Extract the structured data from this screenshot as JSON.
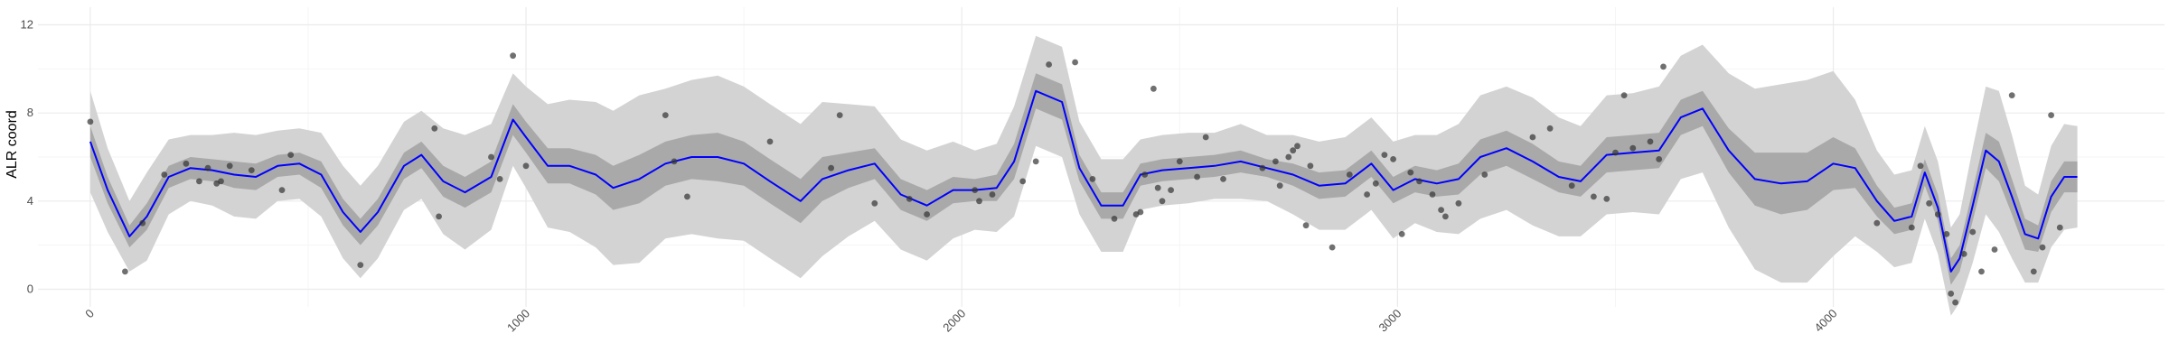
{
  "chart_data": {
    "type": "line",
    "title": "",
    "xlabel": "",
    "ylabel": "ALR coord",
    "xlim": [
      -120,
      4760
    ],
    "ylim": [
      -0.8,
      12.8
    ],
    "x_ticks": [
      0,
      1000,
      2000,
      3000,
      4000
    ],
    "x_tick_labels": [
      "0",
      "1000",
      "2000",
      "3000",
      "4000"
    ],
    "y_ticks": [
      0,
      4,
      8,
      12
    ],
    "y_tick_labels": [
      "0",
      "4",
      "8",
      "12"
    ],
    "grid": true,
    "legend": "none",
    "colors": {
      "mean_line": "#0000ff",
      "inner_band": "#a9a9a9",
      "outer_band": "#d3d3d3",
      "points": "#333333",
      "grid_major": "#ebebeb",
      "grid_minor": "#f5f5f5"
    },
    "series": [
      {
        "kind": "mean_line",
        "x": [
          0,
          40,
          90,
          130,
          180,
          230,
          280,
          330,
          380,
          430,
          480,
          530,
          580,
          620,
          660,
          720,
          760,
          810,
          860,
          920,
          970,
          1000,
          1050,
          1100,
          1160,
          1200,
          1260,
          1320,
          1380,
          1440,
          1500,
          1560,
          1630,
          1680,
          1740,
          1800,
          1860,
          1920,
          1980,
          2030,
          2080,
          2120,
          2170,
          2230,
          2270,
          2320,
          2370,
          2410,
          2460,
          2520,
          2580,
          2640,
          2700,
          2760,
          2820,
          2880,
          2940,
          2990,
          3040,
          3090,
          3140,
          3190,
          3250,
          3310,
          3370,
          3420,
          3480,
          3540,
          3600,
          3650,
          3700,
          3760,
          3820,
          3880,
          3940,
          4000,
          4050,
          4100,
          4140,
          4180,
          4210,
          4240,
          4270,
          4290,
          4320,
          4350,
          4380,
          4410,
          4440,
          4470,
          4500,
          4530,
          4560
        ],
        "y": [
          6.7,
          4.5,
          2.4,
          3.3,
          5.1,
          5.5,
          5.4,
          5.2,
          5.1,
          5.6,
          5.7,
          5.2,
          3.5,
          2.6,
          3.5,
          5.6,
          6.1,
          4.9,
          4.4,
          5.1,
          7.7,
          6.9,
          5.6,
          5.6,
          5.2,
          4.6,
          5.0,
          5.7,
          6.0,
          6.0,
          5.7,
          4.9,
          4.0,
          5.0,
          5.4,
          5.7,
          4.3,
          3.8,
          4.5,
          4.5,
          4.6,
          5.8,
          9.0,
          8.5,
          5.5,
          3.8,
          3.8,
          5.2,
          5.4,
          5.5,
          5.6,
          5.8,
          5.5,
          5.2,
          4.7,
          4.8,
          5.7,
          4.5,
          5.0,
          4.8,
          5.0,
          6.0,
          6.4,
          5.8,
          5.1,
          4.9,
          6.1,
          6.2,
          6.3,
          7.8,
          8.2,
          6.3,
          5.0,
          4.8,
          4.9,
          5.7,
          5.5,
          4.0,
          3.1,
          3.3,
          5.3,
          3.7,
          0.8,
          1.4,
          3.8,
          6.3,
          5.8,
          4.2,
          2.5,
          2.3,
          4.2,
          5.1,
          5.1
        ],
        "inner_lower": [
          6.0,
          3.9,
          1.9,
          2.7,
          4.6,
          5.0,
          4.9,
          4.6,
          4.5,
          5.1,
          5.2,
          4.6,
          2.9,
          2.0,
          2.9,
          5.0,
          5.5,
          4.2,
          3.7,
          4.4,
          7.0,
          6.2,
          4.8,
          4.8,
          4.3,
          3.6,
          3.9,
          4.7,
          5.0,
          4.9,
          4.7,
          3.9,
          3.0,
          4.0,
          4.6,
          5.0,
          3.6,
          3.1,
          3.9,
          4.0,
          4.0,
          5.0,
          8.2,
          7.7,
          4.9,
          3.2,
          3.2,
          4.7,
          4.9,
          5.0,
          5.1,
          5.3,
          5.1,
          4.7,
          4.1,
          4.2,
          5.1,
          3.9,
          4.4,
          4.2,
          4.3,
          5.2,
          5.6,
          5.0,
          4.4,
          4.2,
          5.3,
          5.4,
          5.5,
          7.0,
          7.4,
          5.3,
          3.8,
          3.4,
          3.6,
          4.5,
          4.6,
          3.3,
          2.5,
          2.7,
          4.7,
          3.1,
          0.2,
          0.8,
          3.1,
          5.5,
          4.9,
          3.4,
          1.8,
          1.7,
          3.5,
          4.4,
          4.4
        ],
        "inner_upper": [
          7.4,
          5.1,
          2.9,
          3.9,
          5.6,
          6.0,
          5.9,
          5.8,
          5.7,
          6.1,
          6.2,
          5.8,
          4.1,
          3.2,
          4.1,
          6.2,
          6.7,
          5.6,
          5.1,
          5.8,
          8.4,
          7.6,
          6.4,
          6.4,
          6.1,
          5.6,
          6.1,
          6.7,
          7.0,
          7.1,
          6.7,
          5.9,
          5.0,
          6.0,
          6.2,
          6.4,
          5.0,
          4.5,
          5.1,
          5.0,
          5.2,
          6.6,
          9.8,
          9.3,
          6.1,
          4.4,
          4.4,
          5.7,
          5.9,
          6.0,
          6.1,
          6.3,
          5.9,
          5.7,
          5.3,
          5.4,
          6.3,
          5.1,
          5.6,
          5.4,
          5.7,
          6.8,
          7.2,
          6.6,
          5.8,
          5.6,
          6.9,
          7.0,
          7.1,
          8.6,
          9.0,
          7.3,
          6.2,
          6.2,
          6.2,
          6.9,
          6.4,
          4.7,
          3.7,
          3.9,
          5.9,
          4.3,
          1.4,
          2.0,
          4.5,
          7.1,
          6.7,
          5.0,
          3.2,
          2.9,
          4.9,
          5.8,
          5.8
        ],
        "outer_lower": [
          4.4,
          2.6,
          0.8,
          1.3,
          3.4,
          4.0,
          3.8,
          3.3,
          3.2,
          4.0,
          4.1,
          3.3,
          1.4,
          0.5,
          1.4,
          3.6,
          4.1,
          2.5,
          1.8,
          2.7,
          5.6,
          4.6,
          2.8,
          2.6,
          1.9,
          1.1,
          1.2,
          2.3,
          2.5,
          2.3,
          2.2,
          1.4,
          0.5,
          1.5,
          2.4,
          3.1,
          1.8,
          1.3,
          2.3,
          2.7,
          2.6,
          3.3,
          6.5,
          6.0,
          3.4,
          1.7,
          1.7,
          3.6,
          3.8,
          3.9,
          4.1,
          4.1,
          4.0,
          3.4,
          2.7,
          2.7,
          3.6,
          2.3,
          3.0,
          2.6,
          2.5,
          3.2,
          3.6,
          2.9,
          2.4,
          2.4,
          3.4,
          3.5,
          3.4,
          5.0,
          5.3,
          2.8,
          0.9,
          0.3,
          0.3,
          1.5,
          2.4,
          1.7,
          1.0,
          1.2,
          3.2,
          1.6,
          -1.2,
          -0.6,
          1.2,
          3.4,
          2.6,
          1.4,
          0.3,
          0.3,
          1.9,
          2.7,
          2.8
        ],
        "outer_upper": [
          9.0,
          6.4,
          4.0,
          5.3,
          6.8,
          7.0,
          7.0,
          7.1,
          7.0,
          7.2,
          7.3,
          7.1,
          5.6,
          4.7,
          5.6,
          7.6,
          8.1,
          7.3,
          7.0,
          7.5,
          9.8,
          9.2,
          8.4,
          8.6,
          8.5,
          8.1,
          8.8,
          9.1,
          9.5,
          9.7,
          9.2,
          8.4,
          7.5,
          8.5,
          8.4,
          8.3,
          6.8,
          6.3,
          6.7,
          6.3,
          6.6,
          8.3,
          11.5,
          11.0,
          7.6,
          5.9,
          5.9,
          6.8,
          7.0,
          7.1,
          7.1,
          7.5,
          7.0,
          7.0,
          6.7,
          6.9,
          7.8,
          6.7,
          7.0,
          7.0,
          7.5,
          8.8,
          9.2,
          8.7,
          7.8,
          7.4,
          8.8,
          8.9,
          9.2,
          10.6,
          11.1,
          9.8,
          9.1,
          9.3,
          9.5,
          9.9,
          8.6,
          6.3,
          5.2,
          5.4,
          7.4,
          5.8,
          2.8,
          3.4,
          6.4,
          9.2,
          9.0,
          7.0,
          4.7,
          4.3,
          6.5,
          7.5,
          7.4
        ]
      },
      {
        "kind": "points",
        "x": [
          0,
          80,
          120,
          170,
          220,
          250,
          270,
          290,
          300,
          320,
          370,
          440,
          460,
          620,
          790,
          800,
          920,
          940,
          970,
          1000,
          1320,
          1340,
          1370,
          1560,
          1700,
          1720,
          1800,
          1880,
          1920,
          2030,
          2040,
          2070,
          2140,
          2170,
          2200,
          2260,
          2300,
          2350,
          2400,
          2410,
          2420,
          2440,
          2450,
          2460,
          2480,
          2500,
          2540,
          2560,
          2600,
          2690,
          2720,
          2730,
          2750,
          2760,
          2770,
          2790,
          2800,
          2850,
          2890,
          2930,
          2950,
          2970,
          2990,
          3010,
          3030,
          3050,
          3080,
          3100,
          3110,
          3140,
          3200,
          3310,
          3350,
          3400,
          3450,
          3480,
          3500,
          3520,
          3540,
          3580,
          3600,
          3610,
          4100,
          4180,
          4200,
          4220,
          4240,
          4260,
          4270,
          4280,
          4300,
          4320,
          4340,
          4370,
          4410,
          4460,
          4480,
          4500,
          4520
        ],
        "y": [
          7.6,
          0.8,
          3.0,
          5.2,
          5.7,
          4.9,
          5.5,
          4.8,
          4.9,
          5.6,
          5.4,
          4.5,
          6.1,
          1.1,
          7.3,
          3.3,
          6.0,
          5.0,
          10.6,
          5.6,
          7.9,
          5.8,
          4.2,
          6.7,
          5.5,
          7.9,
          3.9,
          4.1,
          3.4,
          4.5,
          4.0,
          4.3,
          4.9,
          5.8,
          10.2,
          10.3,
          5.0,
          3.2,
          3.4,
          3.5,
          5.2,
          9.1,
          4.6,
          4.0,
          4.5,
          5.8,
          5.1,
          6.9,
          5.0,
          5.5,
          5.8,
          4.7,
          6.0,
          6.3,
          6.5,
          2.9,
          5.6,
          1.9,
          5.2,
          4.3,
          4.8,
          6.1,
          5.9,
          2.5,
          5.3,
          4.9,
          4.3,
          3.6,
          3.3,
          3.9,
          5.2,
          6.9,
          7.3,
          4.7,
          4.2,
          4.1,
          6.2,
          8.8,
          6.4,
          6.7,
          5.9,
          10.1,
          3.0,
          2.8,
          5.6,
          3.9,
          3.4,
          2.5,
          -0.2,
          -0.6,
          1.6,
          2.6,
          0.8,
          1.8,
          8.8,
          0.8,
          1.9,
          7.9,
          2.8
        ]
      }
    ]
  }
}
